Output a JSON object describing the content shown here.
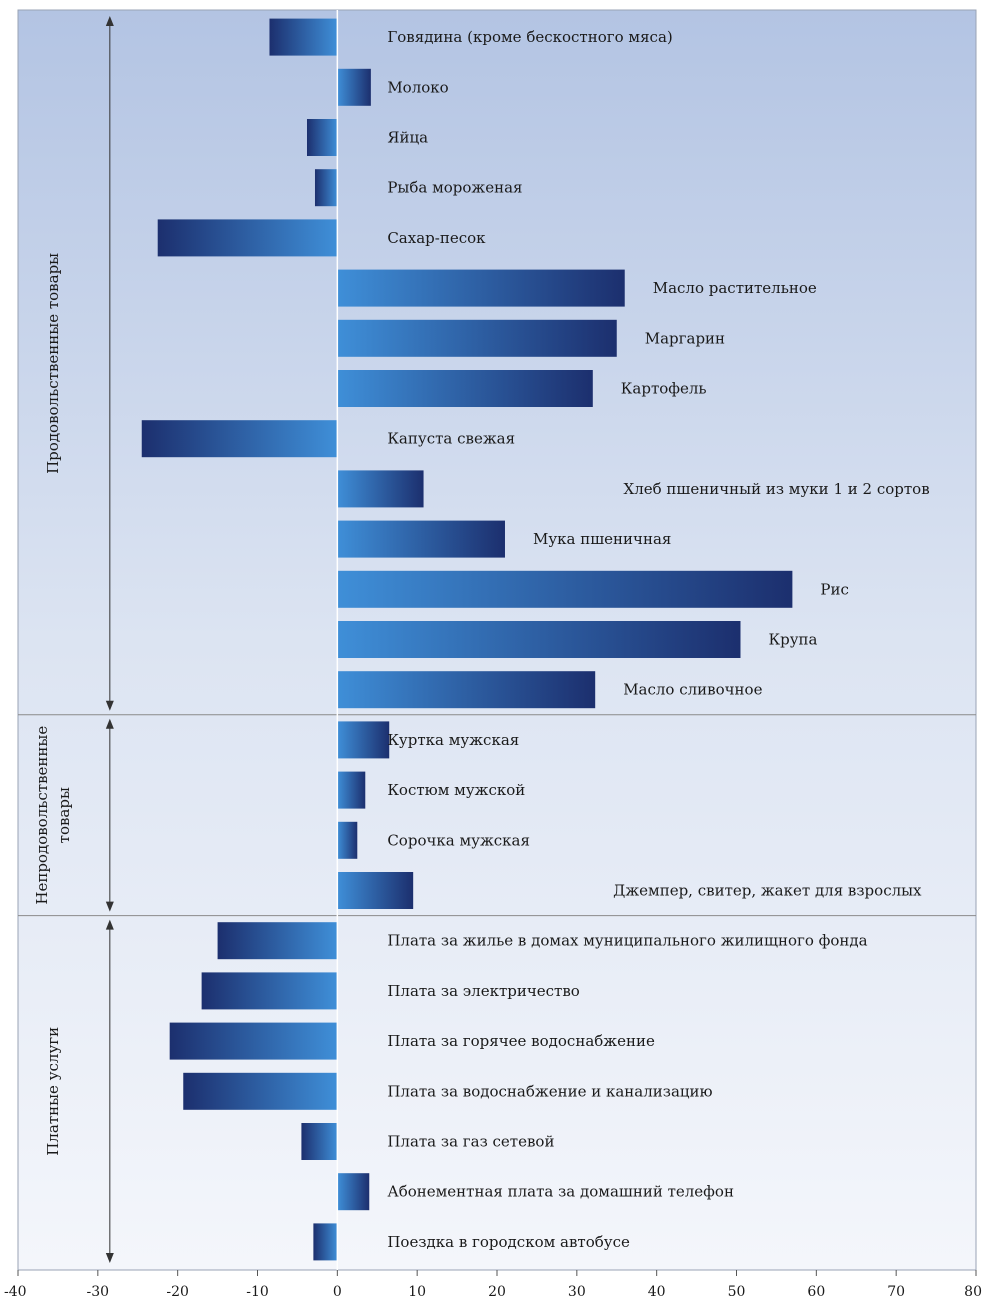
{
  "chart_data": {
    "type": "bar",
    "orientation": "horizontal",
    "title": "",
    "xlabel": "",
    "ylabel": "",
    "xlim": [
      -40,
      80
    ],
    "x_ticks": [
      -40,
      -30,
      -20,
      -10,
      0,
      10,
      20,
      30,
      40,
      50,
      60,
      70,
      80
    ],
    "grid": false,
    "legend": "none",
    "colors": {
      "bar_dark": "#1c2f6e",
      "bar_light": "#3f8fd8",
      "panel_top": "#b3c4e3",
      "panel_bottom": "#f4f6fb",
      "divider": "#8a8a8a"
    },
    "groups": [
      {
        "name": "Продовольственные товары",
        "start": 0,
        "end": 13
      },
      {
        "name": "Непродовольственные товары",
        "start": 14,
        "end": 17
      },
      {
        "name": "Платные услуги",
        "start": 18,
        "end": 24
      }
    ],
    "categories": [
      "Говядина (кроме бескостного мяса)",
      "Молоко",
      "Яйца",
      "Рыба мороженая",
      "Сахар-песок",
      "Масло растительное",
      "Маргарин",
      "Картофель",
      "Капуста свежая",
      "Хлеб пшеничный из муки 1 и 2 сортов",
      "Мука пшеничная",
      "Рис",
      "Крупа",
      "Масло сливочное",
      "Куртка мужская",
      "Костюм мужской",
      "Сорочка мужская",
      "Джемпер, свитер, жакет для взрослых",
      "Плата за жилье в домах муниципального жилищного фонда",
      "Плата за электричество",
      "Плата за горячее водоснабжение",
      "Плата за водоснабжение и канализацию",
      "Плата за газ сетевой",
      "Абонементная плата за домашний телефон",
      "Поездка в городском автобусе"
    ],
    "values": [
      -8.5,
      4.2,
      -3.8,
      -2.8,
      -22.5,
      36,
      35,
      32,
      -24.5,
      10.8,
      21,
      57,
      50.5,
      32.3,
      6.5,
      3.5,
      2.5,
      9.5,
      -15,
      -17,
      -21,
      -19.3,
      -4.5,
      4.0,
      -3.0
    ]
  }
}
